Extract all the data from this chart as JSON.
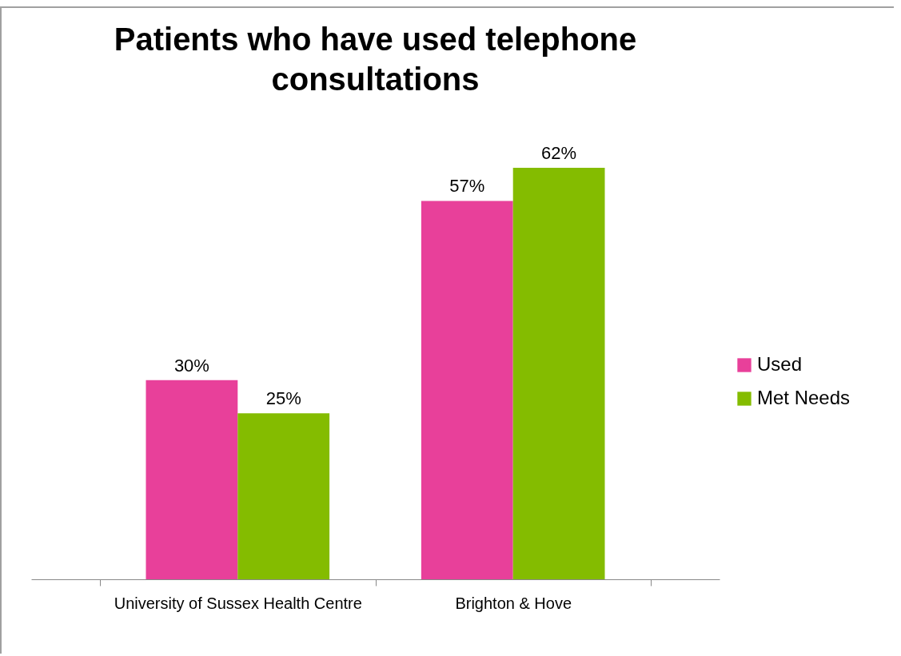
{
  "chart_data": {
    "type": "bar",
    "title": "Patients who have used telephone consultations",
    "categories": [
      "University of Sussex Health Centre",
      "Brighton & Hove"
    ],
    "series": [
      {
        "name": "Used",
        "color": "#e8409a",
        "values": [
          30,
          57
        ],
        "value_labels": [
          "30%",
          "57%"
        ]
      },
      {
        "name": "Met Needs",
        "color": "#84bc00",
        "values": [
          25,
          62
        ],
        "value_labels": [
          "25%",
          "62%"
        ]
      }
    ],
    "legend": "right",
    "grid": false
  }
}
